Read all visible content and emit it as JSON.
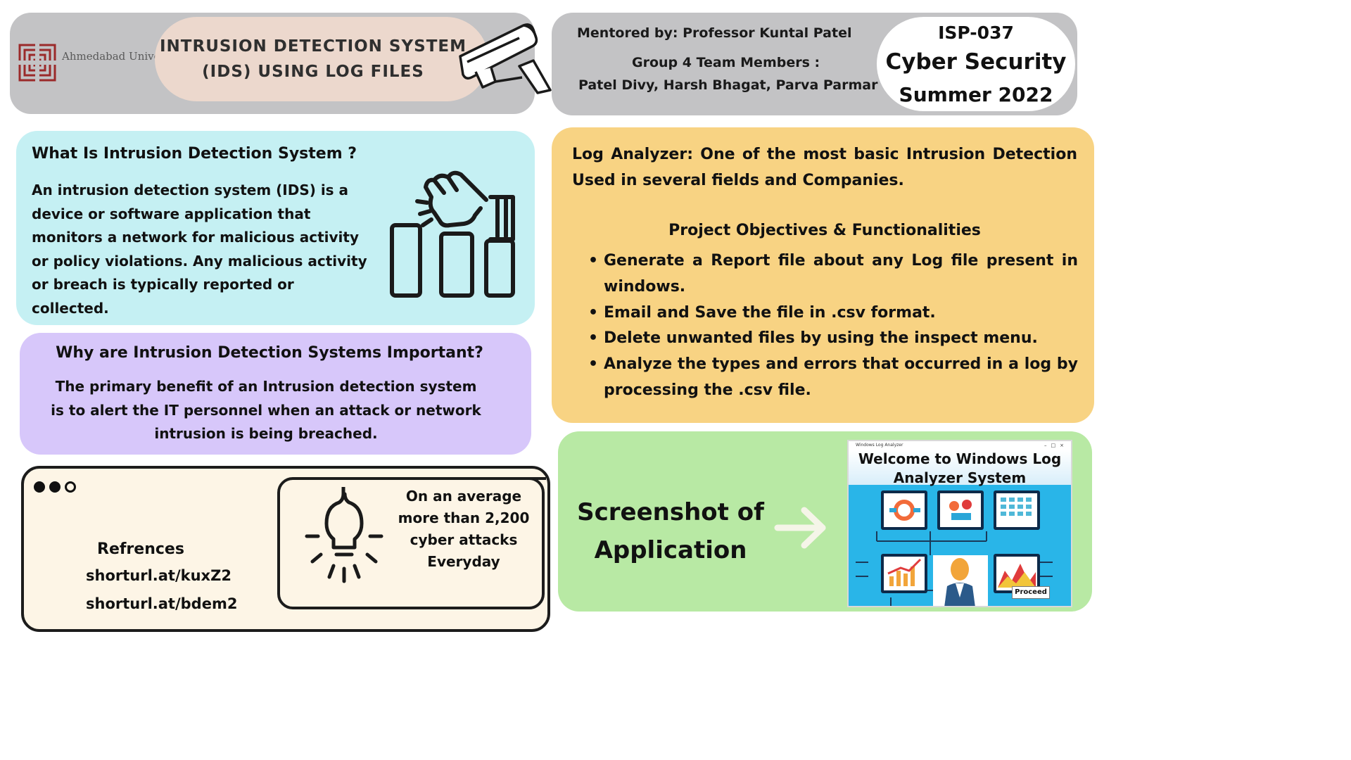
{
  "header": {
    "university": "Ahmedabad University",
    "title": "INTRUSION DETECTION SYSTEM (IDS) USING LOG FILES",
    "mentor": "Mentored by: Professor Kuntal Patel",
    "group": "Group 4 Team Members :",
    "members": "Patel Divy, Harsh Bhagat, Parva Parmar",
    "code": "ISP-037",
    "course": "Cyber Security",
    "term": "Summer 2022"
  },
  "what_is": {
    "title": "What Is Intrusion Detection System ?",
    "body": "An intrusion detection system (IDS) is a device or software application that monitors a network for malicious activity or policy violations. Any malicious activity or breach is typically reported or collected."
  },
  "why": {
    "title": "Why are Intrusion Detection Systems Important?",
    "body": "The primary benefit of an Intrusion detection system is to alert the IT personnel when an attack or network intrusion is being breached."
  },
  "log_analyzer": {
    "intro": "Log Analyzer: One of the most basic Intrusion Detection Used in several fields and Companies.",
    "objectives_title": "Project Objectives & Functionalities",
    "objectives": [
      "Generate a Report file about any Log file present in windows.",
      "Email and Save the file in .csv format.",
      "Delete unwanted files by using the inspect menu.",
      "Analyze the types and errors that occurred in a log by processing the .csv file."
    ]
  },
  "references": {
    "title": "Refrences",
    "links": [
      "shorturl.at/kuxZ2",
      "shorturl.at/bdem2"
    ],
    "stat": "On an average more than 2,200 cyber attacks Everyday"
  },
  "screenshot": {
    "label": "Screenshot of Application",
    "app_window_title": "Windows Log Analyzer",
    "app_heading": "Welcome to Windows Log Analyzer System",
    "proceed_button": "Proceed"
  },
  "colors": {
    "header_gray": "#c3c3c5",
    "title_pill": "#ecd8cd",
    "what_bg": "#c5f0f3",
    "why_bg": "#d7c7fa",
    "log_bg": "#f8d383",
    "refs_bg": "#fdf5e6",
    "shot_bg": "#b8e9a4",
    "app_bg": "#29b5e8",
    "brand_red": "#9b2a2a"
  },
  "icons": [
    "university-logo-icon",
    "security-camera-icon",
    "hand-pressing-icon",
    "window-dots-icon",
    "lightbulb-icon",
    "arrow-right-icon"
  ]
}
